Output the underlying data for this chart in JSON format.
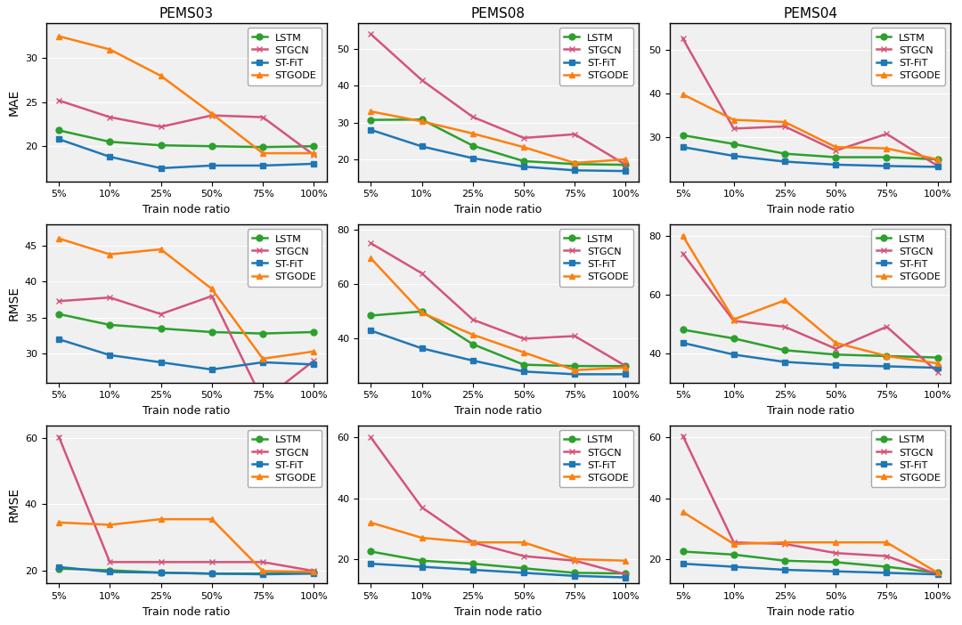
{
  "datasets": [
    "PEMS03",
    "PEMS08",
    "PEMS04"
  ],
  "row_labels": [
    "MAE",
    "RMSE",
    "RMSE"
  ],
  "x_labels": [
    "5%",
    "10%",
    "25%",
    "50%",
    "75%",
    "100%"
  ],
  "series_names": [
    "LSTM",
    "STGCN",
    "ST-FiT",
    "STGODE"
  ],
  "series_colors": [
    "#2ca02c",
    "#d4547a",
    "#1f77b4",
    "#ff7f0e"
  ],
  "series_markers": [
    "o",
    "x",
    "s",
    "^"
  ],
  "data": {
    "row0": {
      "PEMS03": {
        "LSTM": [
          21.8,
          20.5,
          20.1,
          20.0,
          19.9,
          20.0
        ],
        "STGCN": [
          25.2,
          23.3,
          22.2,
          23.5,
          23.3,
          19.0
        ],
        "ST-FiT": [
          20.8,
          18.8,
          17.5,
          17.8,
          17.8,
          18.0
        ],
        "STGODE": [
          32.5,
          31.0,
          28.0,
          23.7,
          19.2,
          19.2
        ]
      },
      "PEMS08": {
        "LSTM": [
          30.7,
          30.8,
          23.7,
          19.5,
          18.7,
          18.5
        ],
        "STGCN": [
          54.0,
          41.5,
          31.5,
          25.8,
          26.8,
          18.5
        ],
        "ST-FiT": [
          28.0,
          23.5,
          20.3,
          18.0,
          17.0,
          16.8
        ],
        "STGODE": [
          33.0,
          30.3,
          27.0,
          23.3,
          19.0,
          20.0
        ]
      },
      "PEMS04": {
        "LSTM": [
          30.5,
          28.5,
          26.3,
          25.5,
          25.5,
          25.0
        ],
        "STGCN": [
          52.5,
          32.0,
          32.5,
          27.0,
          30.8,
          23.5
        ],
        "ST-FiT": [
          27.8,
          25.8,
          24.5,
          23.8,
          23.5,
          23.3
        ],
        "STGODE": [
          39.8,
          34.0,
          33.5,
          27.8,
          27.5,
          25.0
        ]
      }
    },
    "row1": {
      "PEMS03": {
        "LSTM": [
          35.5,
          34.0,
          33.5,
          33.0,
          32.8,
          33.0
        ],
        "STGCN": [
          37.3,
          37.8,
          35.5,
          38.0,
          23.5,
          29.0
        ],
        "ST-FiT": [
          32.0,
          29.8,
          28.8,
          27.8,
          28.8,
          28.5
        ],
        "STGODE": [
          46.0,
          43.8,
          44.5,
          39.0,
          29.3,
          30.3
        ]
      },
      "PEMS08": {
        "LSTM": [
          48.5,
          50.0,
          38.0,
          30.5,
          30.0,
          30.0
        ],
        "STGCN": [
          75.0,
          64.0,
          47.0,
          40.0,
          41.0,
          30.0
        ],
        "ST-FiT": [
          43.0,
          36.5,
          32.0,
          28.0,
          27.0,
          27.0
        ],
        "STGODE": [
          69.5,
          49.5,
          41.5,
          35.0,
          28.5,
          29.5
        ]
      },
      "PEMS04": {
        "LSTM": [
          48.0,
          45.0,
          41.0,
          39.5,
          39.0,
          38.5
        ],
        "STGCN": [
          74.0,
          51.0,
          49.0,
          41.5,
          49.0,
          33.5
        ],
        "ST-FiT": [
          43.5,
          39.5,
          37.0,
          36.0,
          35.5,
          35.0
        ],
        "STGODE": [
          80.0,
          51.5,
          58.0,
          43.5,
          39.0,
          36.5
        ]
      }
    },
    "row2": {
      "PEMS03": {
        "LSTM": [
          20.5,
          20.0,
          19.3,
          19.0,
          19.0,
          19.3
        ],
        "STGCN": [
          60.5,
          22.5,
          22.5,
          22.5,
          22.5,
          19.8
        ],
        "ST-FiT": [
          21.0,
          19.5,
          19.3,
          19.0,
          18.8,
          19.0
        ],
        "STGODE": [
          34.5,
          33.8,
          35.5,
          35.5,
          19.8,
          19.5
        ]
      },
      "PEMS08": {
        "LSTM": [
          22.5,
          19.5,
          18.5,
          17.0,
          15.5,
          15.3
        ],
        "STGCN": [
          60.0,
          37.0,
          25.5,
          21.0,
          19.5,
          15.0
        ],
        "ST-FiT": [
          18.5,
          17.5,
          16.5,
          15.5,
          14.5,
          14.0
        ],
        "STGODE": [
          32.0,
          27.0,
          25.5,
          25.5,
          20.0,
          19.5
        ]
      },
      "PEMS04": {
        "LSTM": [
          22.5,
          21.5,
          19.5,
          19.0,
          17.5,
          15.5
        ],
        "STGCN": [
          60.5,
          25.5,
          25.0,
          22.0,
          21.0,
          15.0
        ],
        "ST-FiT": [
          18.5,
          17.5,
          16.5,
          16.0,
          15.5,
          15.0
        ],
        "STGODE": [
          35.5,
          25.0,
          25.5,
          25.5,
          25.5,
          15.5
        ]
      }
    }
  },
  "ylims": {
    "row0": {
      "PEMS03": [
        16,
        34
      ],
      "PEMS08": [
        14,
        57
      ],
      "PEMS04": [
        20,
        56
      ]
    },
    "row1": {
      "PEMS03": [
        26,
        48
      ],
      "PEMS08": [
        24,
        82
      ],
      "PEMS04": [
        30,
        84
      ]
    },
    "row2": {
      "PEMS03": [
        16,
        64
      ],
      "PEMS08": [
        12,
        64
      ],
      "PEMS04": [
        12,
        64
      ]
    }
  },
  "yticks": {
    "row0": {
      "PEMS03": [
        20,
        25,
        30
      ],
      "PEMS08": [
        20,
        30,
        40,
        50
      ],
      "PEMS04": [
        30,
        40,
        50
      ]
    },
    "row1": {
      "PEMS03": [
        30,
        35,
        40,
        45
      ],
      "PEMS08": [
        40,
        60,
        80
      ],
      "PEMS04": [
        40,
        60,
        80
      ]
    },
    "row2": {
      "PEMS03": [
        20,
        40,
        60
      ],
      "PEMS08": [
        20,
        40,
        60
      ],
      "PEMS04": [
        20,
        40,
        60
      ]
    }
  },
  "bg_color": "#f0f0f0",
  "grid_color": "#ffffff",
  "title_fontsize": 11,
  "label_fontsize": 9,
  "tick_fontsize": 8,
  "legend_fontsize": 8,
  "linewidth": 1.8,
  "markersize": 5
}
